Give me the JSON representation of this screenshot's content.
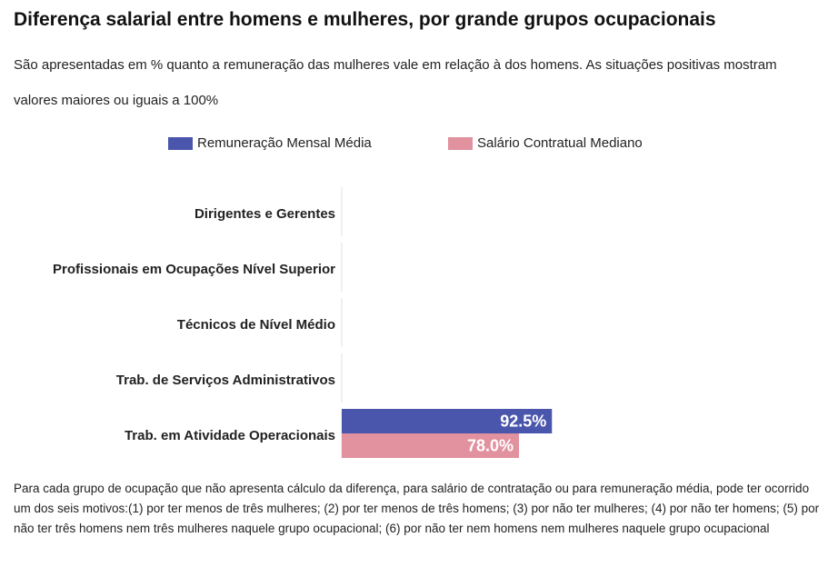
{
  "title": "Diferença salarial entre homens e mulheres, por grande grupos ocupacionais",
  "subtitle": "São apresentadas em % quanto a remuneração das mulheres vale em relação à dos homens. As situações positivas mostram valores maiores ou iguais a 100%",
  "footnote": "Para cada grupo de ocupação que não apresenta cálculo da diferença, para salário de contratação ou para remuneração média, pode ter ocorrido um dos seis motivos:(1) por ter menos de três mulheres; (2) por ter menos de três homens; (3) por não ter mulheres; (4) por não ter homens; (5) por não ter três homens nem três mulheres naquele grupo ocupacional; (6) por não ter nem homens nem mulheres naquele grupo ocupacional",
  "colors": {
    "series1": "#4a55ac",
    "series2": "#e2919f"
  },
  "chart_data": {
    "type": "bar",
    "orientation": "horizontal",
    "title": "Diferença salarial entre homens e mulheres, por grande grupos ocupacionais",
    "categories": [
      "Dirigentes e Gerentes",
      "Profissionais em Ocupações Nível Superior",
      "Técnicos de Nível Médio",
      "Trab. de Serviços Administrativos",
      "Trab. em Atividade Operacionais"
    ],
    "series": [
      {
        "name": "Remuneração Mensal Média",
        "values": [
          null,
          null,
          null,
          null,
          92.5
        ],
        "labels": [
          "",
          "",
          "",
          "",
          "92.5%"
        ]
      },
      {
        "name": "Salário Contratual Mediano",
        "values": [
          null,
          null,
          null,
          null,
          78.0
        ],
        "labels": [
          "",
          "",
          "",
          "",
          "78.0%"
        ]
      }
    ],
    "xlim": [
      0,
      160
    ],
    "legend": "top-center",
    "grid": false,
    "xlabel": "",
    "ylabel": ""
  }
}
